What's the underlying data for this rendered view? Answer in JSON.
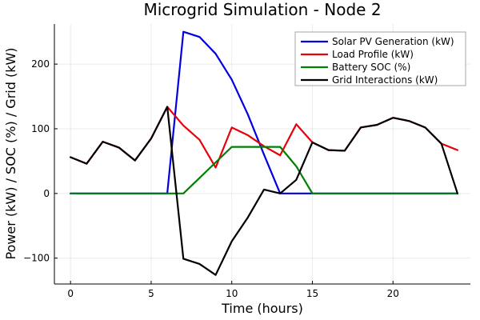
{
  "chart_data": {
    "type": "line",
    "title": "Microgrid Simulation - Node 2",
    "xlabel": "Time (hours)",
    "ylabel": "Power (kW) / SOC (%) / Grid (kW)",
    "xlim": [
      -1,
      24.8
    ],
    "ylim": [
      -140,
      262
    ],
    "xticks": [
      0,
      5,
      10,
      15,
      20
    ],
    "yticks": [
      -100,
      0,
      100,
      200
    ],
    "xtick_labels": [
      "0",
      "5",
      "10",
      "15",
      "20"
    ],
    "ytick_labels": [
      "−100",
      "0",
      "100",
      "200"
    ],
    "grid": true,
    "legend_position": "top-right",
    "x": [
      0,
      1,
      2,
      3,
      4,
      5,
      6,
      7,
      8,
      9,
      10,
      11,
      12,
      13,
      14,
      15,
      16,
      17,
      18,
      19,
      20,
      21,
      22,
      23,
      24
    ],
    "series": [
      {
        "name": "Solar PV Generation (kW)",
        "color": "#0000e0",
        "values": [
          0,
          0,
          0,
          0,
          0,
          0,
          0,
          250,
          242,
          216,
          176,
          122,
          60,
          0,
          0,
          0,
          0,
          0,
          0,
          0,
          0,
          0,
          0,
          0,
          0
        ]
      },
      {
        "name": "Load Profile (kW)",
        "color": "#e8000b",
        "values": [
          56,
          46,
          80,
          71,
          51,
          85,
          134,
          105,
          83,
          40,
          102,
          90,
          73,
          59,
          107,
          79,
          67,
          66,
          102,
          106,
          117,
          112,
          102,
          77,
          67
        ]
      },
      {
        "name": "Battery SOC (%)",
        "color": "#008000",
        "values": [
          0,
          0,
          0,
          0,
          0,
          0,
          0,
          0,
          24,
          48,
          72,
          72,
          72,
          72,
          42,
          0,
          0,
          0,
          0,
          0,
          0,
          0,
          0,
          0,
          0
        ]
      },
      {
        "name": "Grid Interactions (kW)",
        "color": "#000000",
        "values": [
          56,
          46,
          80,
          71,
          51,
          85,
          134,
          -101,
          -109,
          -126,
          -74,
          -37,
          6,
          0,
          21,
          79,
          67,
          66,
          102,
          106,
          117,
          112,
          102,
          77,
          0
        ]
      }
    ]
  }
}
